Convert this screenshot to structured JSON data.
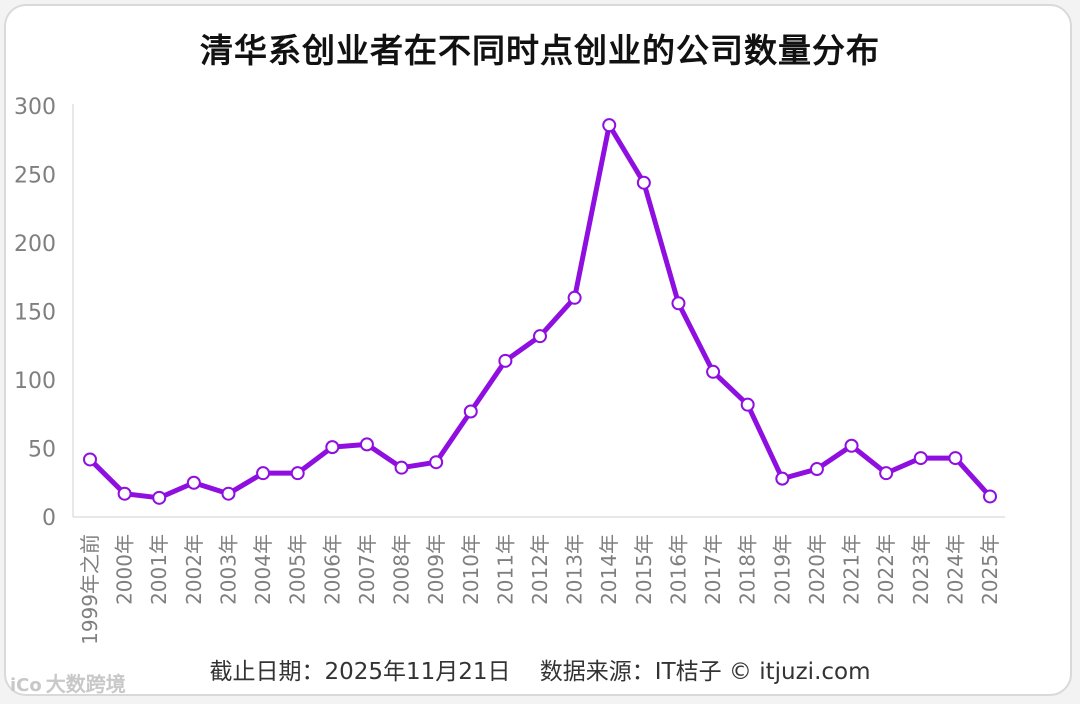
{
  "title": "清华系创业者在不同时点创业的公司数量分布",
  "footer": "截止日期：2025年11月21日    数据来源：IT桔子 © itjuzi.com",
  "watermark": {
    "logo": "iCo",
    "text": "大数跨境"
  },
  "colors": {
    "line": "#8f0fe0",
    "axis_text": "#7f7f7f",
    "marker_fill": "#ffffff",
    "axis_line": "#d0d0d0"
  },
  "chart_data": {
    "type": "line",
    "title": "清华系创业者在不同时点创业的公司数量分布",
    "xlabel": "",
    "ylabel": "",
    "ylim": [
      0,
      300
    ],
    "yticks": [
      0,
      50,
      100,
      150,
      200,
      250,
      300
    ],
    "grid": false,
    "categories": [
      "1999年之前",
      "2000年",
      "2001年",
      "2002年",
      "2003年",
      "2004年",
      "2005年",
      "2006年",
      "2007年",
      "2008年",
      "2009年",
      "2010年",
      "2011年",
      "2012年",
      "2013年",
      "2014年",
      "2015年",
      "2016年",
      "2017年",
      "2018年",
      "2019年",
      "2020年",
      "2021年",
      "2022年",
      "2023年",
      "2024年",
      "2025年"
    ],
    "series": [
      {
        "values": [
          42,
          17,
          14,
          25,
          17,
          32,
          32,
          51,
          53,
          36,
          40,
          77,
          114,
          132,
          160,
          286,
          244,
          156,
          106,
          82,
          28,
          35,
          52,
          32,
          43,
          43,
          15
        ]
      }
    ]
  }
}
